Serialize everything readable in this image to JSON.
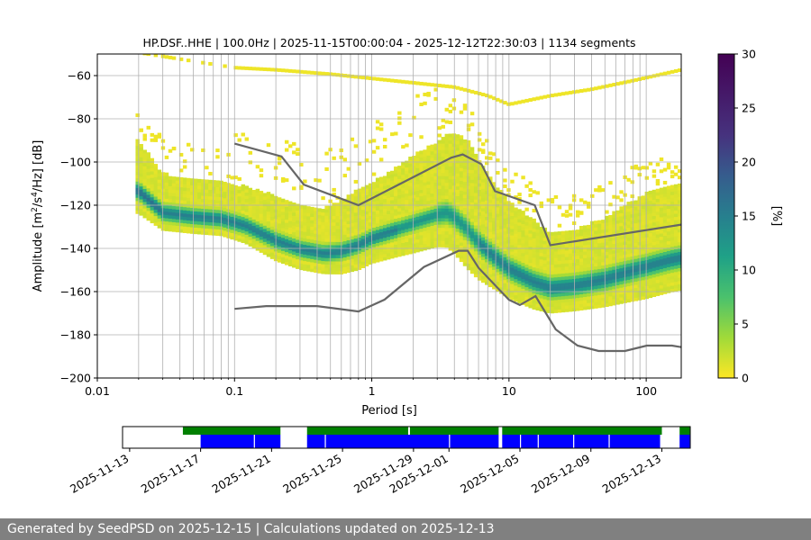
{
  "chart_data": [
    {
      "type": "heatmap",
      "title": "HP.DSF..HHE | 100.0Hz | 2025-11-15T00:00:04 - 2025-12-12T22:30:03 | 1134 segments",
      "xlabel": "Period [s]",
      "ylabel": "Amplitude [m²/s⁴/Hz] [dB]",
      "xscale": "log",
      "xlim": [
        0.01,
        180
      ],
      "ylim": [
        -200,
        -50
      ],
      "x_ticks": [
        0.01,
        0.1,
        1,
        10,
        100
      ],
      "x_tick_labels": [
        "0.01",
        "0.1",
        "1",
        "10",
        "100"
      ],
      "y_ticks": [
        -200,
        -180,
        -160,
        -140,
        -120,
        -100,
        -80,
        -60
      ],
      "y_tick_labels": [
        "−200",
        "−180",
        "−160",
        "−140",
        "−120",
        "−100",
        "−80",
        "−60"
      ],
      "grid": true,
      "colorbar": {
        "label": "[%]",
        "range": [
          0,
          30
        ],
        "ticks": [
          0,
          5,
          10,
          15,
          20,
          25,
          30
        ],
        "tick_labels": [
          "0",
          "5",
          "10",
          "15",
          "20",
          "25",
          "30"
        ],
        "colormap": "viridis_r"
      },
      "density_mode": {
        "x": [
          0.02,
          0.03,
          0.05,
          0.08,
          0.12,
          0.2,
          0.3,
          0.45,
          0.6,
          0.8,
          1.0,
          1.5,
          2.0,
          3.0,
          3.5,
          4.0,
          5.0,
          6.0,
          8.0,
          10.0,
          15.0,
          20.0,
          30.0,
          50.0,
          70.0,
          100.0,
          150.0,
          180.0
        ],
        "y": [
          -114,
          -124,
          -126,
          -127,
          -130,
          -137,
          -141,
          -143,
          -142,
          -139,
          -136,
          -132,
          -129,
          -125,
          -124,
          -126,
          -132,
          -138,
          -145,
          -150,
          -156,
          -159,
          -158,
          -155,
          -152,
          -149,
          -146,
          -145
        ]
      },
      "density_spread_db": [
        18,
        14,
        13,
        13,
        14,
        16,
        16,
        16,
        18,
        20,
        20,
        22,
        24,
        26,
        28,
        30,
        32,
        30,
        26,
        24,
        22,
        20,
        20,
        22,
        24,
        26,
        26,
        26
      ],
      "high_noise_model": {
        "x": [
          0.1,
          0.22,
          0.32,
          0.8,
          3.8,
          4.6,
          6.3,
          7.9,
          15.4,
          20.0,
          180.0
        ],
        "y": [
          -91.5,
          -97.4,
          -110.5,
          -120.0,
          -98.0,
          -96.5,
          -101.0,
          -113.5,
          -120.0,
          -138.5,
          -129.0
        ]
      },
      "low_noise_model": {
        "x": [
          0.1,
          0.17,
          0.4,
          0.8,
          1.24,
          2.4,
          4.3,
          5.0,
          6.0,
          10.0,
          12.0,
          15.6,
          21.9,
          31.6,
          45.0,
          70.0,
          101.0,
          154.0,
          180.0
        ],
        "y": [
          -168.0,
          -166.7,
          -166.7,
          -169.2,
          -163.7,
          -148.6,
          -141.1,
          -141.1,
          -149.0,
          -163.8,
          -166.2,
          -162.1,
          -177.5,
          -185.0,
          -187.5,
          -187.5,
          -185.0,
          -185.0,
          -185.7
        ]
      },
      "upper_scatter": {
        "x": [
          0.02,
          0.05,
          0.1,
          0.2,
          0.5,
          1.0,
          2.0,
          4.0,
          7.0,
          10.0,
          20.0,
          40.0,
          80.0,
          180.0
        ],
        "y": [
          -50,
          -54,
          -57,
          -58,
          -60,
          -62,
          -64,
          -66,
          -70,
          -74,
          -70,
          -67,
          -63,
          -58
        ]
      }
    },
    {
      "type": "timeline",
      "x_tick_labels": [
        "2025-11-13",
        "2025-11-17",
        "2025-11-21",
        "2025-11-25",
        "2025-11-29",
        "2025-12-01",
        "2025-12-05",
        "2025-12-09",
        "2025-12-13"
      ],
      "x_tick_days": [
        -2,
        2,
        6,
        10,
        14,
        16,
        20,
        24,
        28
      ],
      "xlim_days": [
        -2.4,
        29.6
      ],
      "coverage_color": "#008000",
      "data_color": "#0000ff",
      "coverage": [
        [
          1.0,
          6.5
        ],
        [
          8.0,
          13.7
        ],
        [
          13.8,
          18.8
        ],
        [
          19.0,
          28.0
        ],
        [
          29.0,
          30.0
        ]
      ],
      "data": [
        [
          2.0,
          6.5
        ],
        [
          8.0,
          18.8
        ],
        [
          19.0,
          27.9
        ],
        [
          29.0,
          30.0
        ]
      ],
      "gaps": [
        5.0,
        9.0,
        16.0,
        20.0,
        21.0,
        23.0,
        25.0
      ]
    }
  ],
  "footer": {
    "text": "Generated by SeedPSD on 2025-12-15 | Calculations updated on 2025-12-13"
  }
}
